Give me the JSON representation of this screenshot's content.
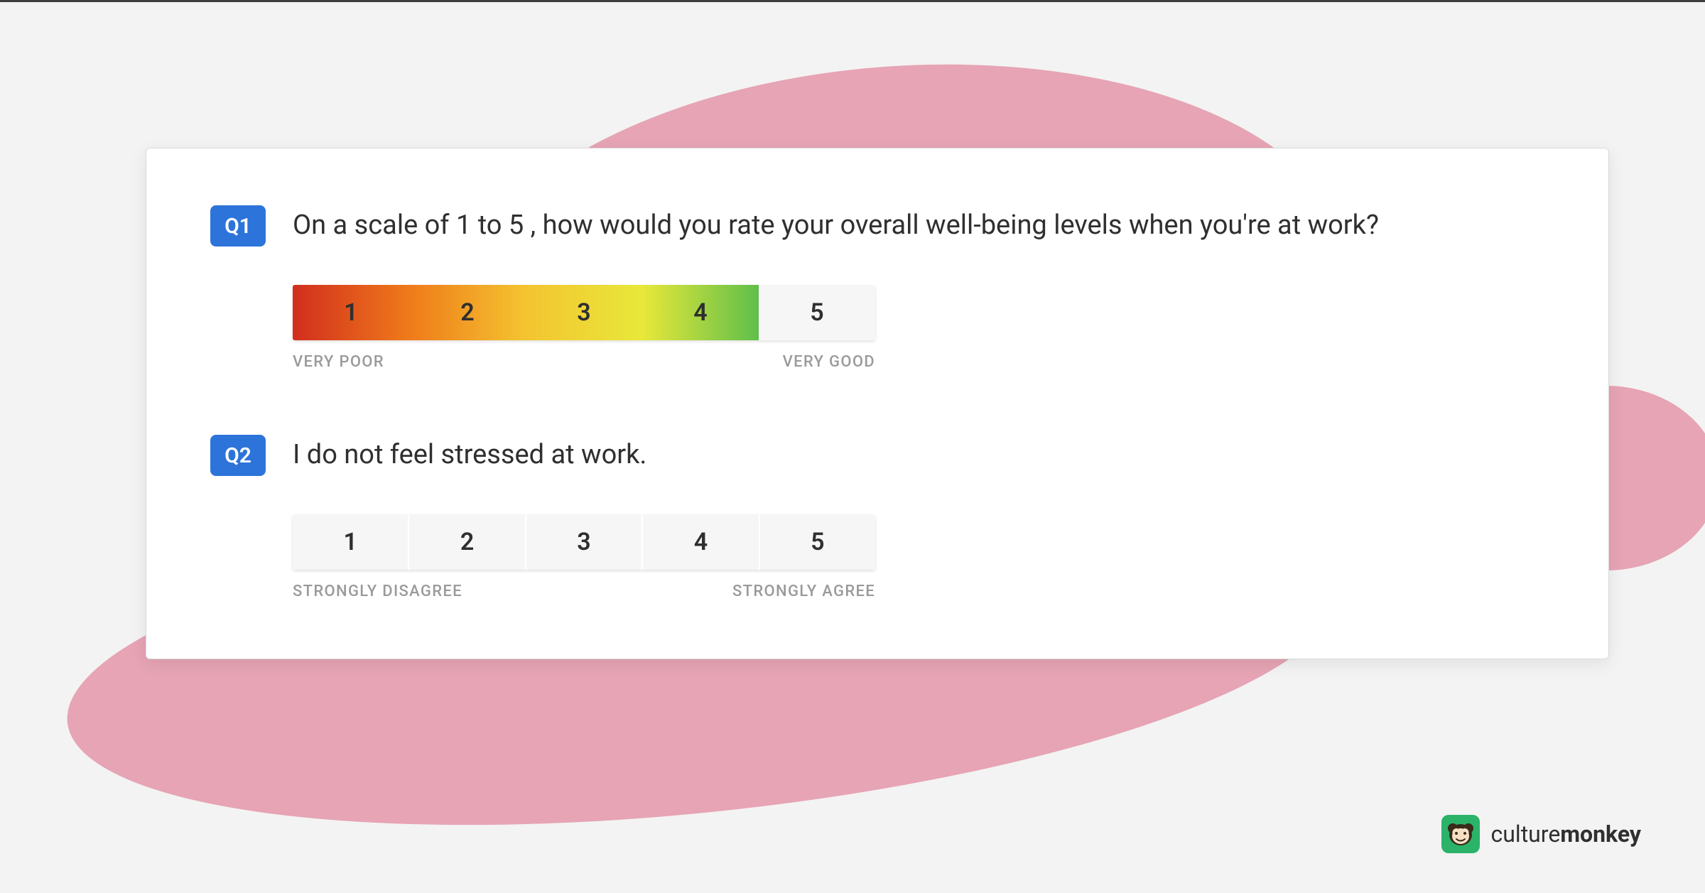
{
  "page": {
    "background_color": "#f3f3f3",
    "top_border_color": "#3e3e3e",
    "blob_color": "#e6a4b4"
  },
  "card": {
    "background": "#ffffff",
    "border_color": "#d9d9d9"
  },
  "badge": {
    "bg": "#2d74da",
    "fg": "#ffffff"
  },
  "questions": [
    {
      "id": "Q1",
      "text": "On a scale of 1 to 5 , how would you rate your overall well-being levels when you're at work?",
      "scale": {
        "type": "gradient-rating",
        "values": [
          "1",
          "2",
          "3",
          "4",
          "5"
        ],
        "gradient_cells": 4,
        "gradient_stops": [
          "#d22e1e",
          "#ef7a1a",
          "#f4c430",
          "#e8e83a",
          "#5fbf4a"
        ],
        "plain_cell_bg": "#f6f6f6",
        "label_left": "VERY POOR",
        "label_right": "VERY GOOD",
        "label_color": "#9a9a9a",
        "number_color": "#2f2f2f"
      }
    },
    {
      "id": "Q2",
      "text": "I do not feel stressed at work.",
      "scale": {
        "type": "plain-rating",
        "values": [
          "1",
          "2",
          "3",
          "4",
          "5"
        ],
        "plain_cell_bg": "#f6f6f6",
        "label_left": "STRONGLY DISAGREE",
        "label_right": "STRONGLY AGREE",
        "label_color": "#9a9a9a",
        "number_color": "#2f2f2f"
      }
    }
  ],
  "brand": {
    "name_part1": "culture",
    "name_part2": "monkey",
    "logo_bg": "#2bb36a",
    "logo_face_bg": "#f5e0c3",
    "logo_face_outline": "#3a2a1a"
  }
}
